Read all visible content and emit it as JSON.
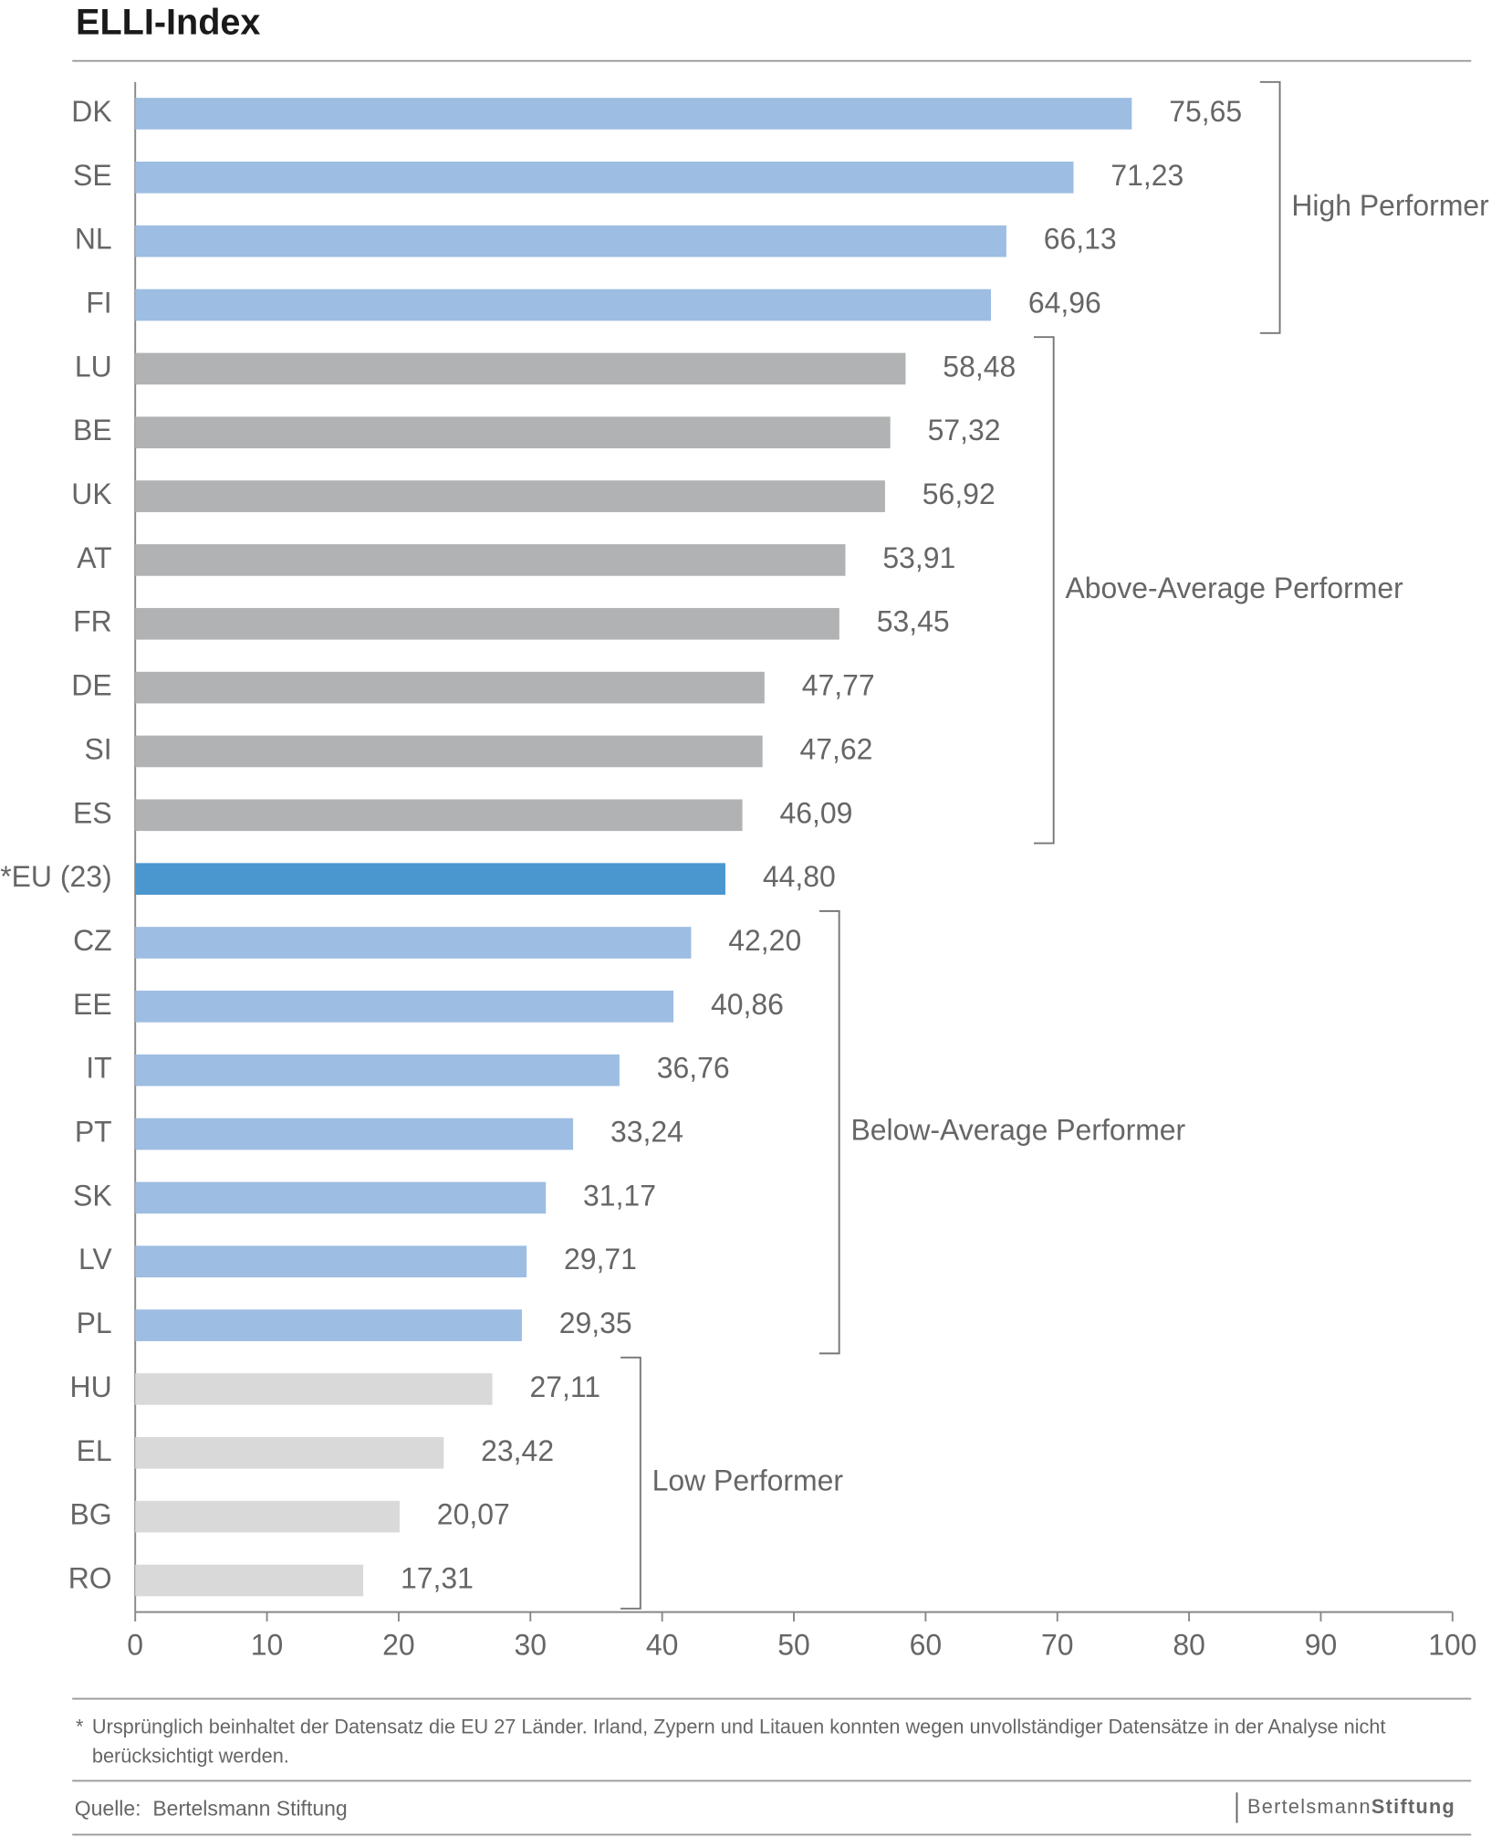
{
  "chart_data": {
    "type": "bar",
    "orientation": "horizontal",
    "title": "ELLI-Index",
    "categories": [
      "DK",
      "SE",
      "NL",
      "FI",
      "LU",
      "BE",
      "UK",
      "AT",
      "FR",
      "DE",
      "SI",
      "ES",
      "*EU (23)",
      "CZ",
      "EE",
      "IT",
      "PT",
      "SK",
      "LV",
      "PL",
      "HU",
      "EL",
      "BG",
      "RO"
    ],
    "values": [
      75.65,
      71.23,
      66.13,
      64.96,
      58.48,
      57.32,
      56.92,
      53.91,
      53.45,
      47.77,
      47.62,
      46.09,
      44.8,
      42.2,
      40.86,
      36.76,
      33.24,
      31.17,
      29.71,
      29.35,
      27.11,
      23.42,
      20.07,
      17.31
    ],
    "value_labels": [
      "75,65",
      "71,23",
      "66,13",
      "64,96",
      "58,48",
      "57,32",
      "56,92",
      "53,91",
      "53,45",
      "47,77",
      "47,62",
      "46,09",
      "44,80",
      "42,20",
      "40,86",
      "36,76",
      "33,24",
      "31,17",
      "29,71",
      "29,35",
      "27,11",
      "23,42",
      "20,07",
      "17,31"
    ],
    "colors": [
      "#9dbde2",
      "#9dbde2",
      "#9dbde2",
      "#9dbde2",
      "#b1b2b4",
      "#b1b2b4",
      "#b1b2b4",
      "#b1b2b4",
      "#b1b2b4",
      "#b1b2b4",
      "#b1b2b4",
      "#b1b2b4",
      "#4a96cf",
      "#9dbde2",
      "#9dbde2",
      "#9dbde2",
      "#9dbde2",
      "#9dbde2",
      "#9dbde2",
      "#9dbde2",
      "#d9d9da",
      "#d9d9da",
      "#d9d9da",
      "#d9d9da"
    ],
    "xlim": [
      0,
      100
    ],
    "xticks": [
      0,
      10,
      20,
      30,
      40,
      50,
      60,
      70,
      80,
      90,
      100
    ],
    "brackets": [
      {
        "label": "High Performer",
        "first": "DK",
        "last": "FI"
      },
      {
        "label": "Above-Average Performer",
        "first": "LU",
        "last": "ES"
      },
      {
        "label": "Below-Average Performer",
        "first": "CZ",
        "last": "PL"
      },
      {
        "label": "Low Performer",
        "first": "HU",
        "last": "RO"
      }
    ],
    "footnote": [
      "*",
      "Ursprünglich beinhaltet der Datensatz die EU 27 Länder. Irland, Zypern und Litauen konnten wegen unvollständiger Datensätze in der Analyse nicht",
      "berücksichtigt werden."
    ],
    "source": "Quelle:  Bertelsmann Stiftung",
    "logo": [
      "Bertelsmann",
      "Stiftung"
    ]
  }
}
